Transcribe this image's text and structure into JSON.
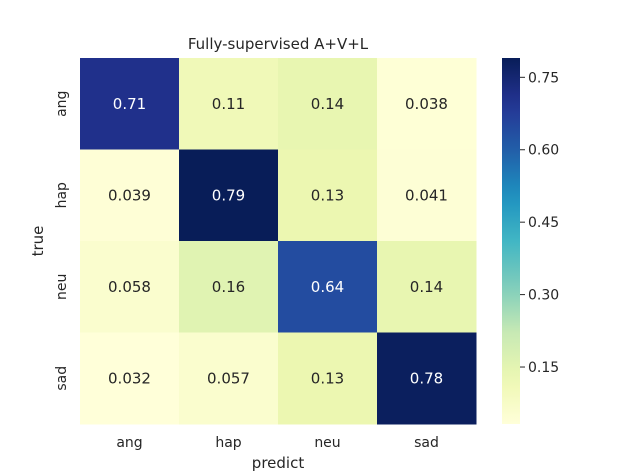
{
  "chart_data": {
    "type": "heatmap",
    "title": "Fully-supervised A+V+L",
    "xlabel": "predict",
    "ylabel": "true",
    "x_categories": [
      "ang",
      "hap",
      "neu",
      "sad"
    ],
    "y_categories": [
      "ang",
      "hap",
      "neu",
      "sad"
    ],
    "values": [
      [
        0.71,
        0.11,
        0.14,
        0.038
      ],
      [
        0.039,
        0.79,
        0.13,
        0.041
      ],
      [
        0.058,
        0.16,
        0.64,
        0.14
      ],
      [
        0.032,
        0.057,
        0.13,
        0.78
      ]
    ],
    "value_labels": [
      [
        "0.71",
        "0.11",
        "0.14",
        "0.038"
      ],
      [
        "0.039",
        "0.79",
        "0.13",
        "0.041"
      ],
      [
        "0.058",
        "0.16",
        "0.64",
        "0.14"
      ],
      [
        "0.032",
        "0.057",
        "0.13",
        "0.78"
      ]
    ],
    "colormap": "YlGnBu",
    "vmin": 0.032,
    "vmax": 0.79,
    "colorbar_ticks": [
      0.15,
      0.3,
      0.45,
      0.6,
      0.75
    ],
    "colorbar_tick_labels": [
      "0.15",
      "0.30",
      "0.45",
      "0.60",
      "0.75"
    ],
    "grid": false
  }
}
